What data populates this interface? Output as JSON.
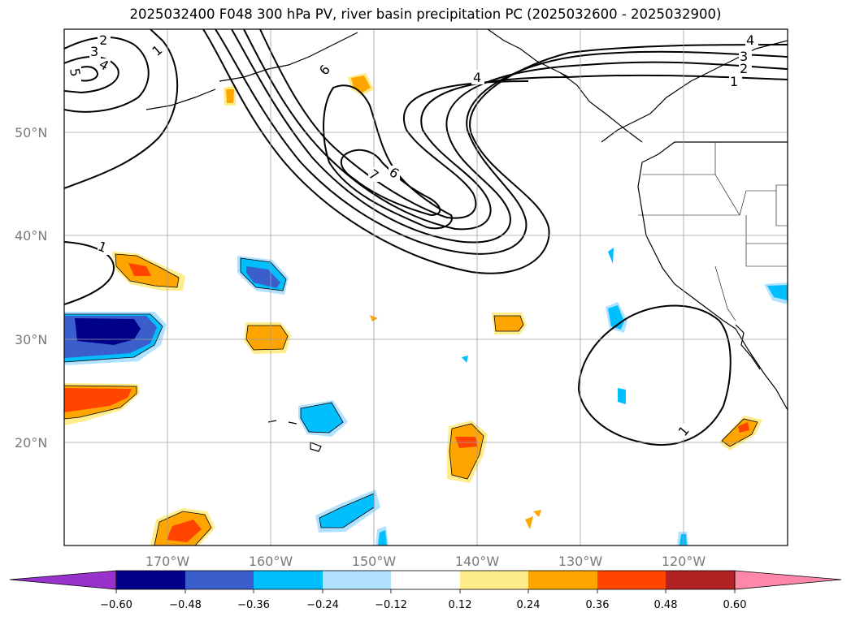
{
  "title": "2025032400 F048 300 hPa PV, river basin precipitation PC (2025032600 - 2025032900)",
  "lat_labels": [
    "50°N",
    "40°N",
    "30°N",
    "20°N"
  ],
  "lon_labels": [
    "170°W",
    "160°W",
    "150°W",
    "140°W",
    "130°W",
    "120°W"
  ],
  "colorbar": {
    "ticks": [
      "−0.60",
      "−0.48",
      "−0.36",
      "−0.24",
      "−0.12",
      "0.12",
      "0.24",
      "0.36",
      "0.48",
      "0.60"
    ],
    "colors": [
      "#9932cc",
      "#00008b",
      "#3a5fcd",
      "#00bfff",
      "#b0e2ff",
      "#ffffff",
      "#ffec8b",
      "#ffa500",
      "#ff4500",
      "#b22222",
      "#ff88aa"
    ]
  },
  "contour_labels": [
    "2",
    "3",
    "4",
    "5",
    "1",
    "6",
    "4",
    "7",
    "6",
    "4",
    "3",
    "2",
    "1",
    "1",
    "1"
  ],
  "palette": {
    "yellow": "#ffec8b",
    "orange": "#ffa500",
    "red": "#ff4500",
    "light_blue": "#b0e2ff",
    "cyan": "#00bfff",
    "mid_blue": "#3a5fcd",
    "navy": "#00008b"
  }
}
